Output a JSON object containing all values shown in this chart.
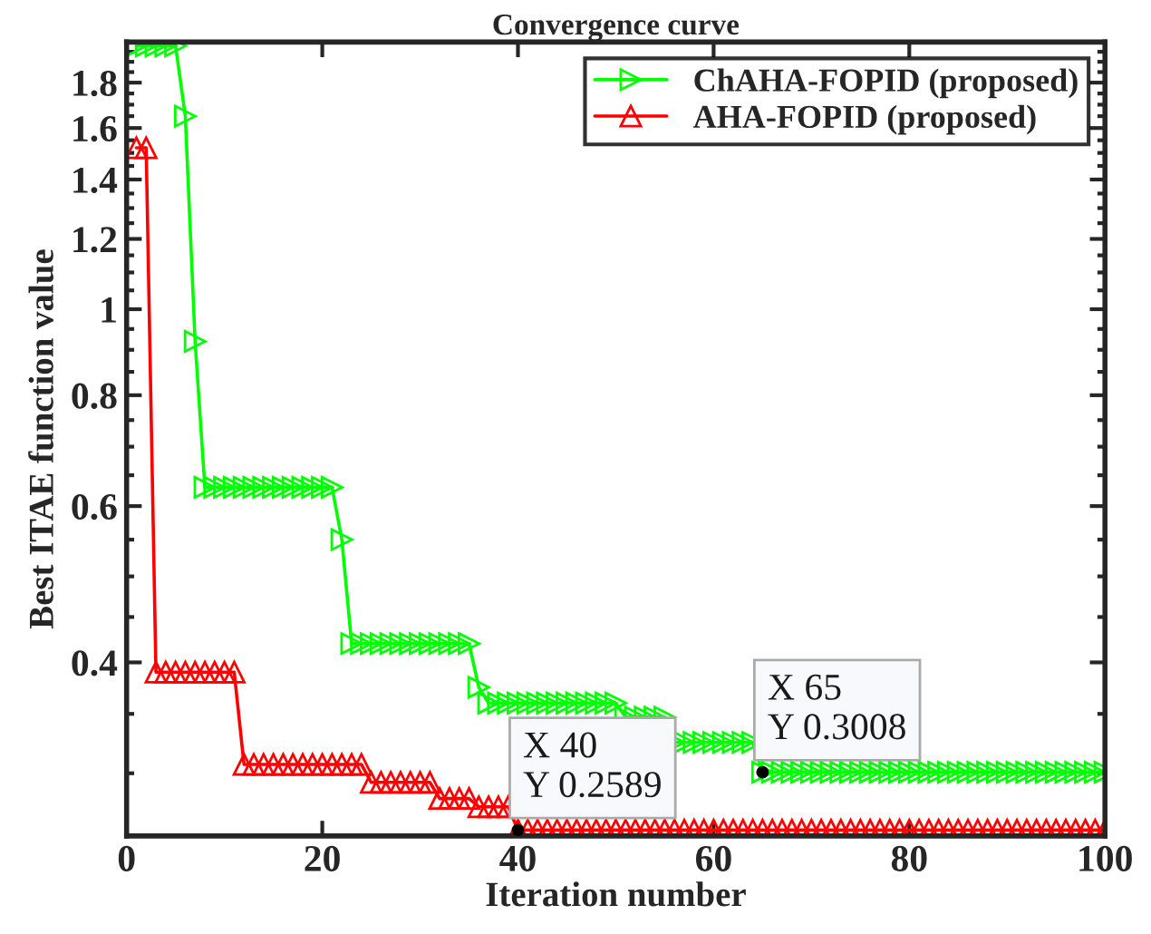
{
  "chart_data": {
    "type": "line",
    "title": "Convergence curve",
    "xlabel": "Iteration number",
    "ylabel": "Best ITAE function value",
    "x": [
      1,
      2,
      3,
      4,
      5,
      6,
      7,
      8,
      9,
      10,
      11,
      12,
      13,
      14,
      15,
      16,
      17,
      18,
      19,
      20,
      21,
      22,
      23,
      24,
      25,
      26,
      27,
      28,
      29,
      30,
      31,
      32,
      33,
      34,
      35,
      36,
      37,
      38,
      39,
      40,
      41,
      42,
      43,
      44,
      45,
      46,
      47,
      48,
      49,
      50,
      51,
      52,
      53,
      54,
      55,
      56,
      57,
      58,
      59,
      60,
      61,
      62,
      63,
      64,
      65,
      66,
      67,
      68,
      69,
      70,
      71,
      72,
      73,
      74,
      75,
      76,
      77,
      78,
      79,
      80,
      81,
      82,
      83,
      84,
      85,
      86,
      87,
      88,
      89,
      90,
      91,
      92,
      93,
      94,
      95,
      96,
      97,
      98,
      99,
      100
    ],
    "series": [
      {
        "name": "ChAHA-FOPID (proposed)",
        "color": "#00ff00",
        "marker": "triangle-right",
        "values": [
          1.98,
          1.98,
          1.98,
          1.98,
          1.98,
          1.65,
          0.92,
          0.63,
          0.63,
          0.63,
          0.63,
          0.63,
          0.63,
          0.63,
          0.63,
          0.63,
          0.63,
          0.63,
          0.63,
          0.63,
          0.63,
          0.55,
          0.42,
          0.42,
          0.42,
          0.42,
          0.42,
          0.42,
          0.42,
          0.42,
          0.42,
          0.42,
          0.42,
          0.42,
          0.42,
          0.375,
          0.36,
          0.36,
          0.36,
          0.36,
          0.36,
          0.36,
          0.36,
          0.36,
          0.36,
          0.36,
          0.36,
          0.36,
          0.36,
          0.36,
          0.347,
          0.347,
          0.347,
          0.347,
          0.347,
          0.325,
          0.325,
          0.325,
          0.325,
          0.325,
          0.325,
          0.325,
          0.325,
          0.325,
          0.3008,
          0.3008,
          0.3008,
          0.3008,
          0.3008,
          0.3008,
          0.3008,
          0.3008,
          0.3008,
          0.3008,
          0.3008,
          0.3008,
          0.3008,
          0.3008,
          0.3008,
          0.3008,
          0.3008,
          0.3008,
          0.3008,
          0.3008,
          0.3008,
          0.3008,
          0.3008,
          0.3008,
          0.3008,
          0.3008,
          0.3008,
          0.3008,
          0.3008,
          0.3008,
          0.3008,
          0.3008,
          0.3008,
          0.3008,
          0.3008,
          0.3008
        ]
      },
      {
        "name": "AHA-FOPID (proposed)",
        "color": "#ff0000",
        "marker": "triangle",
        "values": [
          1.52,
          1.52,
          0.39,
          0.39,
          0.39,
          0.39,
          0.39,
          0.39,
          0.39,
          0.39,
          0.39,
          0.307,
          0.307,
          0.307,
          0.307,
          0.307,
          0.307,
          0.307,
          0.307,
          0.307,
          0.307,
          0.307,
          0.307,
          0.307,
          0.293,
          0.293,
          0.293,
          0.293,
          0.293,
          0.293,
          0.293,
          0.281,
          0.281,
          0.281,
          0.281,
          0.275,
          0.275,
          0.275,
          0.275,
          0.2589,
          0.2589,
          0.2589,
          0.2589,
          0.2589,
          0.2589,
          0.2589,
          0.2589,
          0.2589,
          0.2589,
          0.2589,
          0.2589,
          0.2589,
          0.2589,
          0.2589,
          0.2589,
          0.2589,
          0.2589,
          0.2589,
          0.2589,
          0.2589,
          0.2589,
          0.2589,
          0.2589,
          0.2589,
          0.2589,
          0.2589,
          0.2589,
          0.2589,
          0.2589,
          0.2589,
          0.2589,
          0.2589,
          0.2589,
          0.2589,
          0.2589,
          0.2589,
          0.2589,
          0.2589,
          0.2589,
          0.2589,
          0.2589,
          0.2589,
          0.2589,
          0.2589,
          0.2589,
          0.2589,
          0.2589,
          0.2589,
          0.2589,
          0.2589,
          0.2589,
          0.2589,
          0.2589,
          0.2589,
          0.2589,
          0.2589,
          0.2589,
          0.2589,
          0.2589,
          0.2589
        ]
      }
    ],
    "log": "y",
    "xlim": [
      0,
      100
    ],
    "xticks": [
      0,
      20,
      40,
      60,
      80,
      100
    ],
    "ylim": [
      0.255,
      2
    ],
    "yticks": [
      0.4,
      0.6,
      0.8,
      1,
      1.2,
      1.4,
      1.6,
      1.8
    ],
    "grid": false,
    "legend": "top right",
    "line_style": "solid",
    "annotations": [
      {
        "text": "X 40\nY 0.2589",
        "x": 40,
        "y": 0.2589
      },
      {
        "text": "X 65\nY 0.3008",
        "x": 65,
        "y": 0.3008
      }
    ]
  }
}
